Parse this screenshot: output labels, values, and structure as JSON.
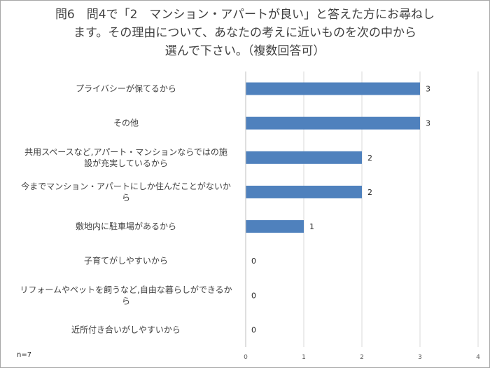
{
  "chart_data": {
    "type": "bar",
    "orientation": "horizontal",
    "title_lines": [
      "問6　問4で「2　マンション・アパートが良い」と答えた方にお尋ねし",
      "ます。その理由について、あなたの考えに近いものを次の中から",
      "選んで下さい。（複数回答可）"
    ],
    "categories": [
      [
        "プライバシーが保てるから"
      ],
      [
        "その他"
      ],
      [
        "共用スペースなど,アパート・マンションならではの施",
        "設が充実しているから"
      ],
      [
        "今までマンション・アパートにしか住んだことがないか",
        "ら"
      ],
      [
        "敷地内に駐車場があるから"
      ],
      [
        "子育てがしやすいから"
      ],
      [
        "リフォームやペットを飼うなど,自由な暮らしができるか",
        "ら"
      ],
      [
        "近所付き合いがしやすいから"
      ]
    ],
    "values": [
      3,
      3,
      2,
      2,
      1,
      0,
      0,
      0
    ],
    "xlim": [
      0,
      4
    ],
    "xticks": [
      "0",
      "1",
      "2",
      "3",
      "4"
    ],
    "grid": "vertical",
    "bar_color": "#4f81bd",
    "note": "n=7"
  }
}
